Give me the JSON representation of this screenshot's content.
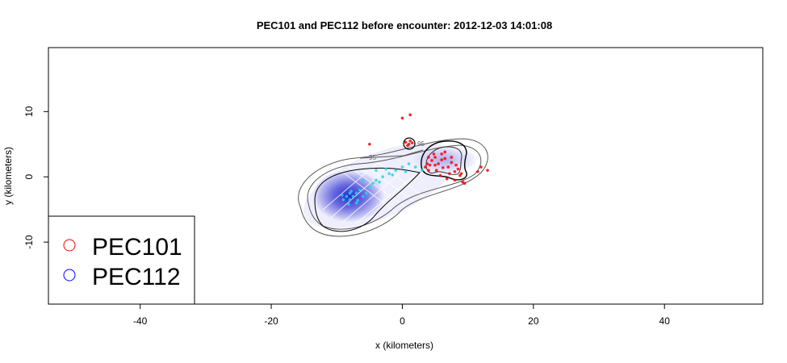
{
  "chart_data": {
    "type": "scatter",
    "title": "PEC101 and PEC112 before encounter: 2012-12-03 14:01:08",
    "xlabel": "x (kilometers)",
    "ylabel": "y (kilometers)",
    "xlim": [
      -54,
      55
    ],
    "ylim": [
      -19.5,
      19.8
    ],
    "xticks": [
      -40,
      -20,
      0,
      20,
      40
    ],
    "yticks": [
      -10,
      0,
      10
    ],
    "grid": false,
    "legend_placement": "bottom-left",
    "contour_label": "95",
    "series": [
      {
        "name": "PEC101",
        "color": "#ff0000",
        "marker": "open-circle",
        "points": [
          [
            4,
            3
          ],
          [
            4.5,
            2.5
          ],
          [
            5,
            3
          ],
          [
            5.5,
            2
          ],
          [
            6,
            3.5
          ],
          [
            6.5,
            2.8
          ],
          [
            7,
            1.5
          ],
          [
            7.5,
            2.2
          ],
          [
            8,
            0.8
          ],
          [
            8.5,
            1.2
          ],
          [
            9,
            0.5
          ],
          [
            4.2,
            1.8
          ],
          [
            5.2,
            1
          ],
          [
            6.2,
            1.4
          ],
          [
            7.2,
            0.5
          ],
          [
            3.5,
            1.5
          ],
          [
            4,
            1
          ],
          [
            5.8,
            0.2
          ],
          [
            6.8,
            -0.3
          ],
          [
            8,
            -0.5
          ],
          [
            8.8,
            0.2
          ],
          [
            9.2,
            -0.8
          ],
          [
            4.8,
            3.5
          ],
          [
            6,
            2.6
          ],
          [
            3.8,
            2
          ],
          [
            5,
            1.8
          ],
          [
            7.5,
            3
          ],
          [
            6.5,
            3.8
          ],
          [
            8.2,
            1.8
          ],
          [
            0.5,
            5.3
          ],
          [
            1,
            5
          ],
          [
            1.5,
            5.2
          ],
          [
            0.8,
            4.8
          ],
          [
            1.2,
            5.5
          ],
          [
            13,
            1
          ],
          [
            12,
            1.5
          ],
          [
            -5,
            5
          ],
          [
            0,
            9
          ],
          [
            1.2,
            9.5
          ],
          [
            11.5,
            0.8
          ],
          [
            9.5,
            -1
          ]
        ]
      },
      {
        "name": "PEC112",
        "color": "#0000ff",
        "marker": "open-circle",
        "points": [
          [
            -8,
            -3.5
          ],
          [
            -7.5,
            -3
          ],
          [
            -7,
            -2.5
          ],
          [
            -8.5,
            -3
          ],
          [
            -9,
            -3.5
          ],
          [
            -6.5,
            -2
          ],
          [
            -6,
            -3
          ],
          [
            -7,
            -4
          ],
          [
            -8,
            -2.5
          ],
          [
            -5.5,
            -2.5
          ],
          [
            -5,
            -1.5
          ],
          [
            -4.5,
            -1
          ],
          [
            -4,
            -0.5
          ],
          [
            -3,
            0
          ],
          [
            -2,
            0.5
          ],
          [
            -1,
            1
          ],
          [
            0,
            1.5
          ],
          [
            1,
            2
          ],
          [
            2,
            1.5
          ],
          [
            -6,
            -0.5
          ],
          [
            -4,
            1
          ],
          [
            -2.5,
            1.2
          ],
          [
            -8.2,
            -4.2
          ],
          [
            -7.8,
            -2.2
          ],
          [
            -6.8,
            -3.6
          ],
          [
            -9.2,
            -2.8
          ],
          [
            -3.5,
            -0.8
          ],
          [
            -1.5,
            0.3
          ],
          [
            0.5,
            0.8
          ],
          [
            3,
            1
          ]
        ]
      }
    ]
  }
}
